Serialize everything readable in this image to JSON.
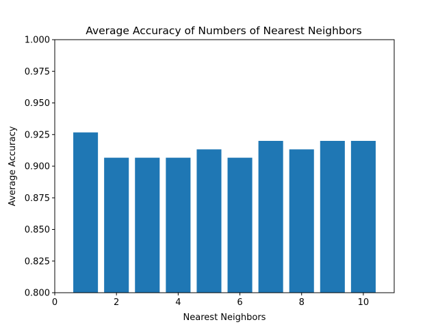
{
  "chart_data": {
    "type": "bar",
    "title": "Average Accuracy of Numbers of Nearest Neighbors",
    "xlabel": "Nearest Neighbors",
    "ylabel": "Average Accuracy",
    "x": [
      1,
      2,
      3,
      4,
      5,
      6,
      7,
      8,
      9,
      10
    ],
    "values": [
      0.9267,
      0.9067,
      0.9067,
      0.9067,
      0.9133,
      0.9067,
      0.92,
      0.9133,
      0.92,
      0.92
    ],
    "xlim": [
      0,
      11
    ],
    "ylim": [
      0.8,
      1.0
    ],
    "xticks": [
      "0",
      "2",
      "4",
      "6",
      "8",
      "10"
    ],
    "yticks": [
      "0.800",
      "0.825",
      "0.850",
      "0.875",
      "0.900",
      "0.925",
      "0.950",
      "0.975",
      "1.000"
    ],
    "bar_color": "#1f77b4",
    "grid": false,
    "legend": "none"
  }
}
